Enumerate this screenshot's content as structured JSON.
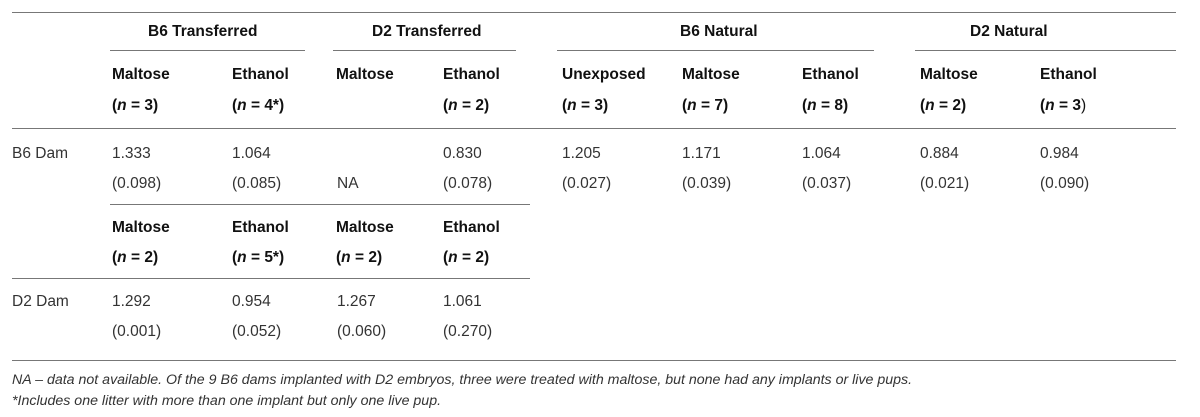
{
  "groups": {
    "b6_transferred": "B6 Transferred",
    "d2_transferred": "D2 Transferred",
    "b6_natural": "B6 Natural",
    "d2_natural": "D2 Natural"
  },
  "block1": {
    "columns": [
      {
        "label": "Maltose",
        "n": "3",
        "suffix": ")"
      },
      {
        "label": "Ethanol",
        "n": "4*",
        "suffix": ")"
      },
      {
        "label": "Maltose",
        "n": "",
        "suffix": ""
      },
      {
        "label": "Ethanol",
        "n": "2",
        "suffix": ")"
      },
      {
        "label": "Unexposed",
        "n": "3",
        "suffix": ")"
      },
      {
        "label": "Maltose",
        "n": "7",
        "suffix": ")"
      },
      {
        "label": "Ethanol",
        "n": "8",
        "suffix": ")"
      },
      {
        "label": "Maltose",
        "n": "2",
        "suffix": ")"
      },
      {
        "label": "Ethanol",
        "n": "3",
        "suffix": ")"
      }
    ],
    "row_label": "B6 Dam",
    "means": [
      "1.333",
      "1.064",
      "",
      "0.830",
      "1.205",
      "1.171",
      "1.064",
      "0.884",
      "0.984"
    ],
    "sds": [
      "(0.098)",
      "(0.085)",
      "NA",
      "(0.078)",
      "(0.027)",
      "(0.039)",
      "(0.037)",
      "(0.021)",
      "(0.090)"
    ]
  },
  "block2": {
    "columns": [
      {
        "label": "Maltose",
        "n": "2"
      },
      {
        "label": "Ethanol",
        "n": "5*"
      },
      {
        "label": "Maltose",
        "n": "2"
      },
      {
        "label": "Ethanol",
        "n": "2"
      }
    ],
    "row_label": "D2 Dam",
    "means": [
      "1.292",
      "0.954",
      "1.267",
      "1.061"
    ],
    "sds": [
      "(0.001)",
      "(0.052)",
      "(0.060)",
      "(0.270)"
    ]
  },
  "n_prefix": "(",
  "n_symbol": "n",
  "n_equals": " = ",
  "footnotes": {
    "na": "NA – data not available. Of the 9 B6 dams implanted with D2 embryos, three were treated with maltose, but none had any implants or live pups.",
    "star": "*Includes one litter with more than one implant but only one live pup."
  }
}
